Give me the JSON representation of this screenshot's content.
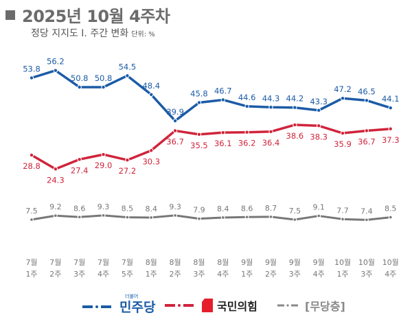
{
  "header": {
    "title": "2025년 10월 4주차",
    "subtitle": "정당 지지도 Ⅰ. 주간 변화",
    "unit": "단위: %"
  },
  "chart_data": {
    "type": "line",
    "title": "2025년 10월 4주차",
    "subtitle": "정당 지지도 Ⅰ. 주간 변화",
    "unit": "%",
    "categories": [
      [
        "7월",
        "1주"
      ],
      [
        "7월",
        "2주"
      ],
      [
        "7월",
        "3주"
      ],
      [
        "7월",
        "4주"
      ],
      [
        "7월",
        "5주"
      ],
      [
        "8월",
        "1주"
      ],
      [
        "8월",
        "2주"
      ],
      [
        "8월",
        "3주"
      ],
      [
        "8월",
        "4주"
      ],
      [
        "9월",
        "1주"
      ],
      [
        "9월",
        "2주"
      ],
      [
        "9월",
        "3주"
      ],
      [
        "9월",
        "4주"
      ],
      [
        "10월",
        "1주"
      ],
      [
        "10월",
        "3주"
      ],
      [
        "10월",
        "4주"
      ]
    ],
    "series": [
      {
        "name": "민주당",
        "color": "#1b5ba6",
        "values": [
          53.8,
          56.2,
          50.8,
          50.8,
          54.5,
          48.4,
          39.9,
          45.8,
          46.7,
          44.6,
          44.3,
          44.2,
          43.3,
          47.2,
          46.5,
          44.1
        ],
        "label_pos": [
          "above",
          "above",
          "above",
          "above",
          "above",
          "above",
          "above",
          "above",
          "above",
          "above",
          "above",
          "above",
          "above",
          "above",
          "above",
          "above"
        ]
      },
      {
        "name": "국민의힘",
        "color": "#d0233b",
        "values": [
          28.8,
          24.3,
          27.4,
          29.0,
          27.2,
          30.3,
          36.7,
          35.5,
          36.1,
          36.2,
          36.4,
          38.6,
          38.3,
          35.9,
          36.7,
          37.3
        ],
        "label_pos": [
          "below",
          "below",
          "below",
          "below",
          "below",
          "below",
          "below",
          "below",
          "below",
          "below",
          "below",
          "below",
          "below",
          "below",
          "below",
          "below"
        ]
      },
      {
        "name": "[무당층]",
        "color": "#777777",
        "values": [
          7.5,
          9.2,
          8.6,
          9.3,
          8.5,
          8.4,
          9.3,
          7.9,
          8.4,
          8.6,
          8.7,
          7.5,
          9.1,
          7.7,
          7.4,
          8.5
        ]
      }
    ],
    "xlabel": "",
    "ylabel": "",
    "grid": false,
    "legend_position": "bottom"
  },
  "legend": {
    "items": [
      {
        "name": "민주당",
        "tag": "더불어",
        "color": "#1b5ba6"
      },
      {
        "name": "국민의힘",
        "color": "#d0233b"
      },
      {
        "name": "[무당층]",
        "color": "#888888"
      }
    ]
  }
}
